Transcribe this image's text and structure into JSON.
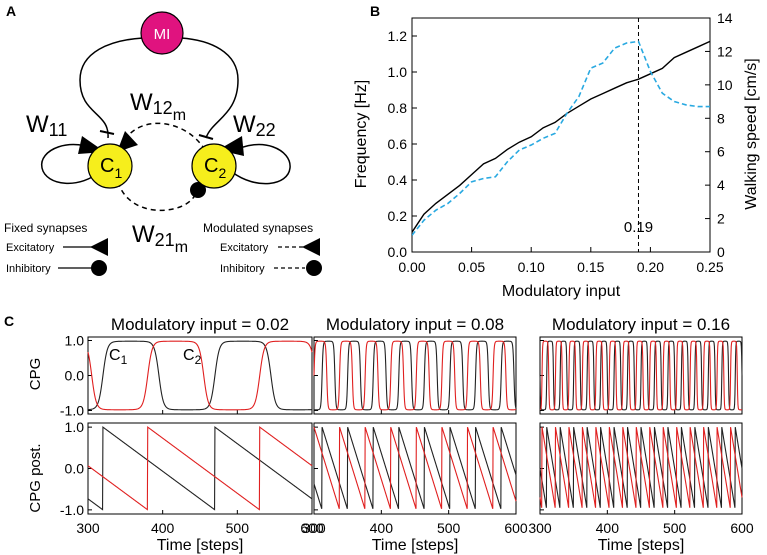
{
  "panel_labels": {
    "a": "A",
    "b": "B",
    "c": "C"
  },
  "diagram": {
    "mi_label": "MI",
    "c1_main": "C",
    "c1_sub": "1",
    "c2_main": "C",
    "c2_sub": "2",
    "w11_main": "W",
    "w11_sub": "11",
    "w22_main": "W",
    "w22_sub": "22",
    "w12_main": "W",
    "w12_sub": "12",
    "w12_subsub": "m",
    "w21_main": "W",
    "w21_sub": "21",
    "w21_subsub": "m",
    "mi_color": "#e0137f",
    "cpg_color": "#f6ee1c",
    "legend": {
      "fixed_title": "Fixed synapses",
      "modulated_title": "Modulated synapses",
      "excitatory": "Excitatory",
      "inhibitory": "Inhibitory"
    }
  },
  "chart_data": [
    {
      "id": "B",
      "type": "line",
      "xlabel": "Modulatory input",
      "ylabel": "Frequency [Hz]",
      "y2label": "Walking speed [cm/s]",
      "xlim": [
        0,
        0.25
      ],
      "ylim": [
        0,
        1.3
      ],
      "y2lim": [
        0,
        14
      ],
      "xticks": [
        "0.00",
        "0.05",
        "0.10",
        "0.15",
        "0.20",
        "0.25"
      ],
      "yticks": [
        "0.0",
        "0.2",
        "0.4",
        "0.6",
        "0.8",
        "1.0",
        "1.2"
      ],
      "y2ticks": [
        "0",
        "2",
        "4",
        "6",
        "8",
        "10",
        "12",
        "14"
      ],
      "vline": {
        "x": 0.19,
        "label": "0.19"
      },
      "frequency_series": {
        "name": "Frequency",
        "color": "#000000",
        "axis": "left",
        "x": [
          0.0,
          0.01,
          0.02,
          0.03,
          0.04,
          0.05,
          0.06,
          0.07,
          0.08,
          0.09,
          0.1,
          0.11,
          0.12,
          0.13,
          0.14,
          0.15,
          0.16,
          0.17,
          0.18,
          0.19,
          0.2,
          0.21,
          0.22,
          0.23,
          0.24,
          0.25
        ],
        "y": [
          0.11,
          0.21,
          0.27,
          0.32,
          0.37,
          0.43,
          0.49,
          0.52,
          0.57,
          0.61,
          0.64,
          0.69,
          0.72,
          0.77,
          0.81,
          0.85,
          0.88,
          0.91,
          0.94,
          0.96,
          0.99,
          1.02,
          1.08,
          1.11,
          1.14,
          1.17
        ]
      },
      "speed_series": {
        "name": "Walking speed",
        "color": "#29a9e1",
        "axis": "right",
        "x": [
          0.0,
          0.01,
          0.02,
          0.03,
          0.04,
          0.05,
          0.06,
          0.07,
          0.08,
          0.09,
          0.1,
          0.11,
          0.12,
          0.13,
          0.14,
          0.15,
          0.16,
          0.17,
          0.18,
          0.19,
          0.2,
          0.21,
          0.22,
          0.23,
          0.24,
          0.25
        ],
        "y": [
          1.0,
          1.9,
          2.5,
          2.9,
          3.5,
          4.2,
          4.4,
          4.5,
          5.4,
          6.1,
          6.4,
          6.8,
          7.1,
          8.3,
          9.3,
          11.0,
          11.3,
          12.2,
          12.5,
          12.6,
          10.8,
          9.5,
          9.0,
          8.8,
          8.7,
          8.7
        ]
      }
    },
    {
      "id": "C",
      "type": "line",
      "xlabel": "Time [steps]",
      "row_labels": [
        "CPG",
        "CPG post."
      ],
      "xlim": [
        300,
        600
      ],
      "ylim": [
        -1.1,
        1.1
      ],
      "xticks": [
        "300",
        "400",
        "500",
        "600"
      ],
      "yticks": [
        "1.0",
        "0.0",
        "-1.0"
      ],
      "neuron_labels": {
        "c1_main": "C",
        "c1_sub": "1",
        "c2_main": "C",
        "c2_sub": "2"
      },
      "series_colors": {
        "c1": "#222222",
        "c2": "#e02020"
      },
      "columns": [
        {
          "title": "Modulatory input = 0.02",
          "modulatory_input": 0.02,
          "period_steps": 150,
          "c1_phase": 320,
          "c2_phase": 380
        },
        {
          "title": "Modulatory input = 0.08",
          "modulatory_input": 0.08,
          "period_steps": 38,
          "c1_phase": 312,
          "c2_phase": 300
        },
        {
          "title": "Modulatory input = 0.16",
          "modulatory_input": 0.16,
          "period_steps": 20,
          "c1_phase": 310,
          "c2_phase": 303
        }
      ]
    }
  ]
}
